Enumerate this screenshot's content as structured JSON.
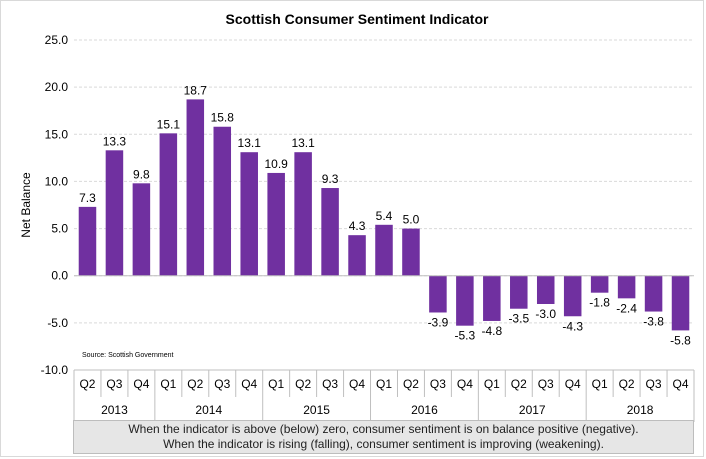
{
  "chart_data": {
    "type": "bar",
    "title": "Scottish Consumer Sentiment Indicator",
    "ylabel": "Net Balance",
    "xlabel": "",
    "ylim": [
      -10,
      25
    ],
    "yticks": [
      "25.0",
      "20.0",
      "15.0",
      "10.0",
      "5.0",
      "0.0",
      "-5.0",
      "-10.0"
    ],
    "grid": true,
    "bar_color": "#7030a0",
    "categories": [
      "Q2",
      "Q3",
      "Q4",
      "Q1",
      "Q2",
      "Q3",
      "Q4",
      "Q1",
      "Q2",
      "Q3",
      "Q4",
      "Q1",
      "Q2",
      "Q3",
      "Q4",
      "Q1",
      "Q2",
      "Q3",
      "Q4",
      "Q1",
      "Q2",
      "Q3",
      "Q4"
    ],
    "values": [
      7.3,
      13.3,
      9.8,
      15.1,
      18.7,
      15.8,
      13.1,
      10.9,
      13.1,
      9.3,
      4.3,
      5.4,
      5.0,
      -3.9,
      -5.3,
      -4.8,
      -3.5,
      -3.0,
      -4.3,
      -1.8,
      -2.4,
      -3.8,
      -5.8
    ],
    "labels": [
      "7.3",
      "13.3",
      "9.8",
      "15.1",
      "18.7",
      "15.8",
      "13.1",
      "10.9",
      "13.1",
      "9.3",
      "4.3",
      "5.4",
      "5.0",
      "-3.9",
      "-5.3",
      "-4.8",
      "-3.5",
      "-3.0",
      "-4.3",
      "-1.8",
      "-2.4",
      "-3.8",
      "-5.8"
    ],
    "year_groups": [
      {
        "label": "2013",
        "count": 3
      },
      {
        "label": "2014",
        "count": 4
      },
      {
        "label": "2015",
        "count": 4
      },
      {
        "label": "2016",
        "count": 4
      },
      {
        "label": "2017",
        "count": 4
      },
      {
        "label": "2018",
        "count": 4
      }
    ],
    "source": "Source: Scottish Government"
  },
  "note": {
    "line1": "When the indicator is above (below) zero, consumer sentiment is on balance positive (negative).",
    "line2": "When the indicator is rising (falling), consumer sentiment is improving (weakening)."
  }
}
